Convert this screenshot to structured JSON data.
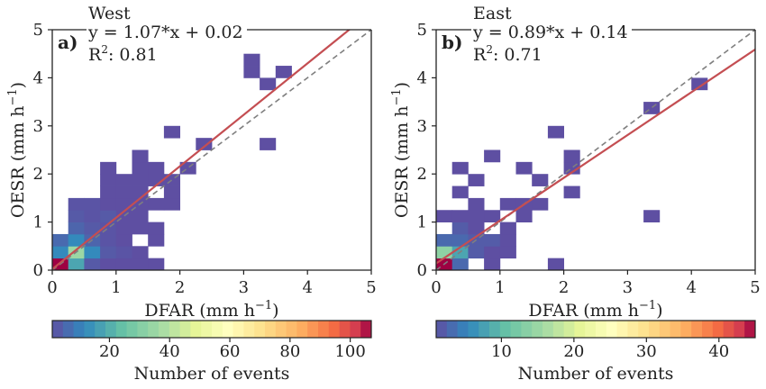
{
  "chart_data": [
    {
      "type": "heatmap",
      "panel_label": "a)",
      "region": "West",
      "fit_equation": "y = 1.07*x + 0.02",
      "r2_prefix": "R",
      "r2_sup": "2",
      "r2_value": ": 0.81",
      "fit": {
        "slope": 1.07,
        "intercept": 0.02
      },
      "xlabel": "DFAR (mm h",
      "ylabel": "OESR (mm h",
      "unit_exponent": "−1",
      "unit_close": ")",
      "xlim": [
        0,
        5
      ],
      "ylim": [
        0,
        5
      ],
      "xticks": [
        0,
        1,
        2,
        3,
        4,
        5
      ],
      "yticks": [
        0,
        1,
        2,
        3,
        4,
        5
      ],
      "bin_size": 0.25,
      "one_to_one_line": true,
      "grid": false,
      "colorbar": {
        "label": "Number of events",
        "min": 1,
        "max": 107,
        "ticks": [
          20,
          40,
          60,
          80,
          100
        ]
      },
      "cells": [
        [
          0,
          0,
          107
        ],
        [
          0.25,
          0,
          18
        ],
        [
          0.5,
          0,
          3
        ],
        [
          0.75,
          0,
          1
        ],
        [
          1,
          0,
          1
        ],
        [
          1.25,
          0,
          1
        ],
        [
          1.5,
          0,
          1
        ],
        [
          0,
          0.25,
          12
        ],
        [
          0.25,
          0.25,
          35
        ],
        [
          0.5,
          0.25,
          12
        ],
        [
          0.75,
          0.25,
          3
        ],
        [
          1,
          0.25,
          2
        ],
        [
          1.25,
          0.25,
          1
        ],
        [
          0,
          0.5,
          6
        ],
        [
          0.25,
          0.5,
          12
        ],
        [
          0.5,
          0.5,
          5
        ],
        [
          0.75,
          0.5,
          2
        ],
        [
          1,
          0.5,
          1
        ],
        [
          1.5,
          0.5,
          1
        ],
        [
          0.25,
          0.75,
          5
        ],
        [
          0.5,
          0.75,
          3
        ],
        [
          0.75,
          0.75,
          2
        ],
        [
          1,
          0.75,
          1
        ],
        [
          1.25,
          0.75,
          1
        ],
        [
          1.5,
          0.75,
          1
        ],
        [
          0.25,
          1.0,
          3
        ],
        [
          0.5,
          1.0,
          2
        ],
        [
          0.75,
          1.0,
          3
        ],
        [
          1,
          1.0,
          1
        ],
        [
          1.25,
          1.0,
          1
        ],
        [
          0.25,
          1.25,
          2
        ],
        [
          0.5,
          1.25,
          2
        ],
        [
          0.75,
          1.25,
          1
        ],
        [
          1,
          1.25,
          1
        ],
        [
          1.25,
          1.25,
          1
        ],
        [
          1.5,
          1.25,
          1
        ],
        [
          1.75,
          1.25,
          1
        ],
        [
          0.75,
          1.5,
          1
        ],
        [
          1,
          1.5,
          1
        ],
        [
          1.25,
          1.5,
          1
        ],
        [
          1.75,
          1.5,
          1
        ],
        [
          0.75,
          1.75,
          1
        ],
        [
          1,
          1.75,
          1
        ],
        [
          1.25,
          1.75,
          1
        ],
        [
          1.5,
          1.75,
          1
        ],
        [
          1.75,
          1.75,
          1
        ],
        [
          0.75,
          2.0,
          1
        ],
        [
          1.25,
          2.0,
          1
        ],
        [
          1.5,
          2.0,
          1
        ],
        [
          2.0,
          2.0,
          1
        ],
        [
          1.25,
          2.25,
          1
        ],
        [
          2.25,
          2.5,
          1
        ],
        [
          3.25,
          2.5,
          1
        ],
        [
          1.75,
          2.75,
          1
        ],
        [
          3.0,
          4.0,
          1
        ],
        [
          3.5,
          4.0,
          1
        ],
        [
          3.25,
          3.75,
          1
        ],
        [
          3.0,
          4.25,
          1
        ]
      ]
    },
    {
      "type": "heatmap",
      "panel_label": "b)",
      "region": "East",
      "fit_equation": "y = 0.89*x + 0.14",
      "r2_prefix": "R",
      "r2_sup": "2",
      "r2_value": ": 0.71",
      "fit": {
        "slope": 0.89,
        "intercept": 0.14
      },
      "xlabel": "DFAR (mm h",
      "ylabel": "OESR (mm h",
      "unit_exponent": "−1",
      "unit_close": ")",
      "xlim": [
        0,
        5
      ],
      "ylim": [
        0,
        5
      ],
      "xticks": [
        0,
        1,
        2,
        3,
        4,
        5
      ],
      "yticks": [
        0,
        1,
        2,
        3,
        4,
        5
      ],
      "bin_size": 0.25,
      "one_to_one_line": true,
      "grid": false,
      "colorbar": {
        "label": "Number of events",
        "min": 1,
        "max": 45,
        "ticks": [
          10,
          20,
          30,
          40
        ]
      },
      "cells": [
        [
          0,
          0,
          45
        ],
        [
          0.25,
          0,
          3
        ],
        [
          0.75,
          0,
          1
        ],
        [
          1.75,
          0,
          1
        ],
        [
          0,
          0.25,
          14
        ],
        [
          0.25,
          0.25,
          8
        ],
        [
          0.5,
          0.25,
          2
        ],
        [
          0.75,
          0.25,
          1
        ],
        [
          1.0,
          0.25,
          1
        ],
        [
          0,
          0.5,
          3
        ],
        [
          0.25,
          0.5,
          3
        ],
        [
          0.5,
          0.5,
          2
        ],
        [
          0.75,
          0.5,
          2
        ],
        [
          1.0,
          0.5,
          1
        ],
        [
          0.25,
          0.75,
          2
        ],
        [
          0.5,
          0.75,
          1
        ],
        [
          1.0,
          0.75,
          1
        ],
        [
          0,
          1.0,
          1
        ],
        [
          0.25,
          1.0,
          1
        ],
        [
          0.5,
          1.0,
          1
        ],
        [
          0.75,
          1.0,
          1
        ],
        [
          1.25,
          1.0,
          1
        ],
        [
          1.25,
          1.25,
          1
        ],
        [
          1.5,
          1.25,
          1
        ],
        [
          0.5,
          1.25,
          1
        ],
        [
          1.0,
          1.25,
          1
        ],
        [
          0.25,
          1.5,
          1
        ],
        [
          2.0,
          1.5,
          1
        ],
        [
          0.5,
          1.75,
          1
        ],
        [
          1.5,
          1.75,
          1
        ],
        [
          0.25,
          2.0,
          1
        ],
        [
          1.25,
          2.0,
          1
        ],
        [
          2.0,
          2.0,
          1
        ],
        [
          0.75,
          2.25,
          1
        ],
        [
          2.0,
          2.25,
          1
        ],
        [
          1.75,
          2.75,
          1
        ],
        [
          3.25,
          1.0,
          1
        ],
        [
          3.25,
          3.25,
          1
        ],
        [
          4.0,
          3.75,
          1
        ]
      ]
    }
  ]
}
